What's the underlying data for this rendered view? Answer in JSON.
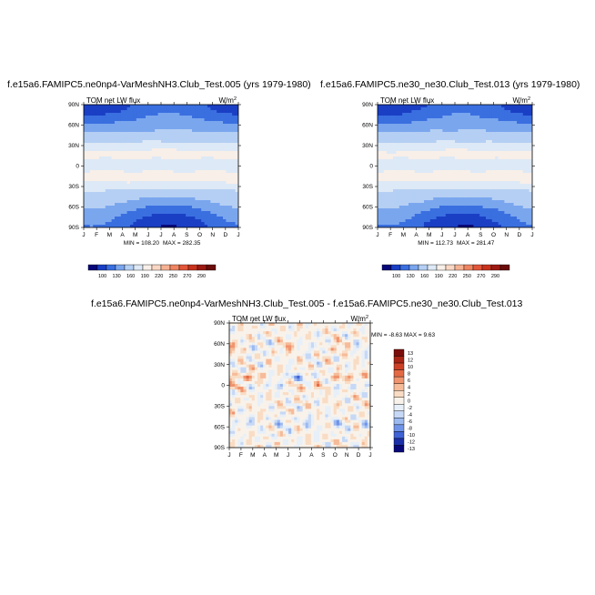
{
  "panels": [
    {
      "title": "f.e15a6.FAMIPC5.ne0np4-VarMeshNH3.Club_Test.005 (yrs 1979-1980)",
      "variable": "TOM net LW flux",
      "units_base": "W/m",
      "units_exp": "2",
      "min_label": "MIN = 108.20",
      "max_label": "MAX = 282.35"
    },
    {
      "title": "f.e15a6.FAMIPC5.ne30_ne30.Club_Test.013 (yrs 1979-1980)",
      "variable": "TOM net LW flux",
      "units_base": "W/m",
      "units_exp": "2",
      "min_label": "MIN = 112.73",
      "max_label": "MAX = 281.47"
    },
    {
      "title": "f.e15a6.FAMIPC5.ne0np4-VarMeshNH3.Club_Test.005 - f.e15a6.FAMIPC5.ne30_ne30.Club_Test.013",
      "variable": "TOM net LW flux",
      "units_base": "W/m",
      "units_exp": "2",
      "min_label": "MIN =  -8.63",
      "max_label": "MAX =   9.63"
    }
  ],
  "chart_data": [
    {
      "type": "heatmap",
      "title": "f.e15a6.FAMIPC5.ne0np4-VarMeshNH3.Club_Test.005 (yrs 1979-1980)",
      "variable": "TOM net LW flux",
      "units": "W/m2",
      "x_ticks": [
        "J",
        "F",
        "M",
        "A",
        "M",
        "J",
        "J",
        "A",
        "S",
        "O",
        "N",
        "D",
        "J"
      ],
      "y_ticks": [
        "90N",
        "60N",
        "30N",
        "0",
        "30S",
        "60S",
        "90S"
      ],
      "ylim": [
        -90,
        90
      ],
      "min": 108.2,
      "max": 282.35,
      "colorbar_levels": [
        100,
        130,
        160,
        190,
        220,
        250,
        270,
        290
      ],
      "colorbar_labels": [
        "100",
        "130",
        "160",
        "190",
        "220",
        "250",
        "270",
        "290"
      ]
    },
    {
      "type": "heatmap",
      "title": "f.e15a6.FAMIPC5.ne30_ne30.Club_Test.013 (yrs 1979-1980)",
      "variable": "TOM net LW flux",
      "units": "W/m2",
      "x_ticks": [
        "J",
        "F",
        "M",
        "A",
        "M",
        "J",
        "J",
        "A",
        "S",
        "O",
        "N",
        "D",
        "J"
      ],
      "y_ticks": [
        "90N",
        "60N",
        "30N",
        "0",
        "30S",
        "60S",
        "90S"
      ],
      "ylim": [
        -90,
        90
      ],
      "min": 112.73,
      "max": 281.47,
      "colorbar_levels": [
        100,
        130,
        160,
        190,
        220,
        250,
        270,
        290
      ],
      "colorbar_labels": [
        "100",
        "130",
        "160",
        "190",
        "220",
        "250",
        "270",
        "290"
      ]
    },
    {
      "type": "heatmap",
      "title": "f.e15a6.FAMIPC5.ne0np4-VarMeshNH3.Club_Test.005 - f.e15a6.FAMIPC5.ne30_ne30.Club_Test.013",
      "variable": "TOM net LW flux",
      "units": "W/m2",
      "x_ticks": [
        "J",
        "F",
        "M",
        "A",
        "M",
        "J",
        "J",
        "A",
        "S",
        "O",
        "N",
        "D",
        "J"
      ],
      "y_ticks": [
        "90N",
        "60N",
        "30N",
        "0",
        "30S",
        "60S",
        "90S"
      ],
      "ylim": [
        -90,
        90
      ],
      "min": -8.63,
      "max": 9.63,
      "colorbar_levels": [
        13,
        12,
        10,
        8,
        6,
        4,
        2,
        0,
        -2,
        -4,
        -6,
        -8,
        -10,
        -12,
        -13
      ],
      "colorbar_labels": [
        "13",
        "12",
        "10",
        "8",
        "6",
        "4",
        "2",
        "0",
        "-2",
        "-4",
        "-6",
        "-8",
        "-10",
        "-12",
        "-13"
      ]
    }
  ],
  "colors": {
    "abs_scale": [
      "#08087a",
      "#1a3fc4",
      "#3a6fe0",
      "#7aa6ee",
      "#b5cff4",
      "#dde9f6",
      "#f8efe8",
      "#f9d7c4",
      "#f6b193",
      "#ef8462",
      "#e2563a",
      "#c9321d",
      "#9c1a12",
      "#6b0d0b"
    ],
    "diff_scale": [
      "#08087a",
      "#1b2fa8",
      "#3f62d6",
      "#6f93e8",
      "#9cb9f0",
      "#c6d8f5",
      "#e7eff8",
      "#f8f2ea",
      "#f9dcc4",
      "#f6bb99",
      "#f0946e",
      "#e36a45",
      "#cc4126",
      "#a82414",
      "#7a0d0b"
    ],
    "axis": "#000000"
  }
}
